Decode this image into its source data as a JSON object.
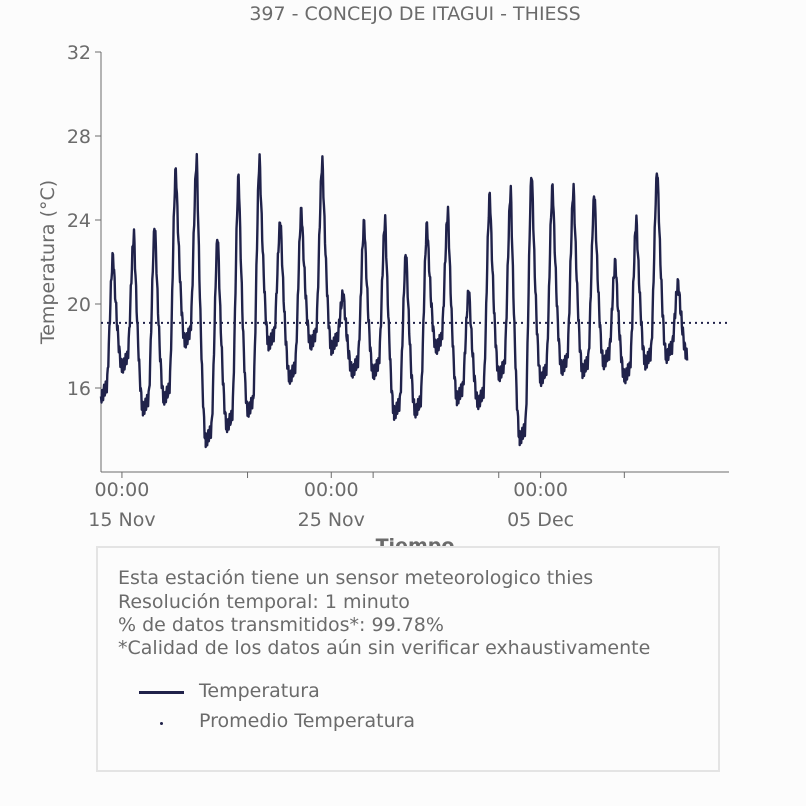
{
  "colors": {
    "series": "#20224a",
    "text": "#6b6b6b",
    "axis": "#6b6b6b",
    "background": "#fcfcfc",
    "box_border": "#e4e4e4"
  },
  "chart_data": {
    "type": "line",
    "title": "397 - CONCEJO DE ITAGUI - THIESS",
    "xlabel": "Tiempo",
    "ylabel": "Temperatura (°C)",
    "ylim": [
      12,
      32
    ],
    "yticks": [
      16,
      20,
      24,
      28,
      32
    ],
    "xlim_days": [
      0,
      30
    ],
    "x_unit": "days since 2023-11-14 00:00",
    "xticks": [
      {
        "day": 1,
        "time": "00:00",
        "date": "15 Nov"
      },
      {
        "day": 7,
        "time": "00:00",
        "date": ""
      },
      {
        "day": 11,
        "time": "00:00",
        "date": "25 Nov"
      },
      {
        "day": 13,
        "time": "00:00",
        "date": ""
      },
      {
        "day": 19,
        "time": "00:00",
        "date": ""
      },
      {
        "day": 21,
        "time": "00:00",
        "date": "05 Dec"
      },
      {
        "day": 25,
        "time": "00:00",
        "date": ""
      }
    ],
    "grid": false,
    "series": [
      {
        "name": "Temperatura",
        "style": "solid",
        "daily_cycle_day_hour_min_max": [
          [
            0,
            15.6,
            22.3
          ],
          [
            1,
            17.0,
            23.3
          ],
          [
            2,
            15.0,
            23.8
          ],
          [
            3,
            15.5,
            26.4
          ],
          [
            4,
            18.2,
            26.9
          ],
          [
            5,
            13.5,
            23.3
          ],
          [
            6,
            14.2,
            26.1
          ],
          [
            7,
            14.9,
            26.9
          ],
          [
            8,
            18.1,
            24.0
          ],
          [
            9,
            16.5,
            24.5
          ],
          [
            10,
            18.1,
            26.8
          ],
          [
            11,
            17.9,
            20.5
          ],
          [
            12,
            16.8,
            23.9
          ],
          [
            13,
            16.7,
            24.0
          ],
          [
            14,
            14.8,
            22.5
          ],
          [
            15,
            14.9,
            23.8
          ],
          [
            16,
            17.9,
            24.4
          ],
          [
            17,
            15.5,
            20.7
          ],
          [
            18,
            15.3,
            25.2
          ],
          [
            19,
            16.6,
            25.4
          ],
          [
            20,
            13.6,
            26.3
          ],
          [
            21,
            16.4,
            25.6
          ],
          [
            22,
            16.9,
            25.5
          ],
          [
            23,
            16.8,
            25.3
          ],
          [
            24,
            17.2,
            22.0
          ],
          [
            25,
            16.5,
            24.0
          ],
          [
            26,
            17.2,
            26.4
          ],
          [
            27,
            17.5,
            21.0
          ]
        ]
      },
      {
        "name": "Promedio Temperatura",
        "style": "dotted",
        "value": 19.1
      }
    ],
    "legend": [
      "Temperatura",
      "Promedio Temperatura"
    ]
  },
  "info": {
    "line1": "Esta estación tiene un sensor meteorologico thies",
    "line2": "Resolución temporal: 1 minuto",
    "line3": "% de datos transmitidos*: 99.78%",
    "line4": "*Calidad de los datos aún sin verificar exhaustivamente"
  },
  "legend": {
    "temperatura": "Temperatura",
    "promedio": "Promedio Temperatura"
  }
}
